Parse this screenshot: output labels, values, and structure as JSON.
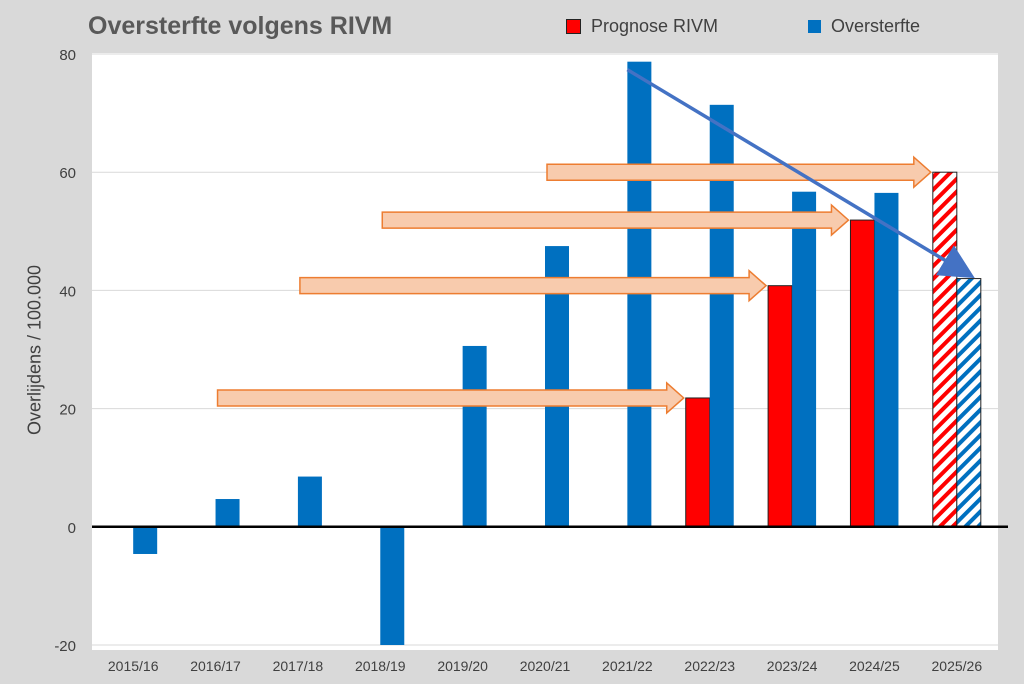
{
  "chart_data": {
    "type": "bar",
    "title": "Oversterfte volgens RIVM",
    "ylabel": "Overlijdens / 100.000",
    "xlabel": "",
    "ylim": [
      -20,
      80
    ],
    "yticks": [
      "80",
      "60",
      "40",
      "20",
      "0",
      "-20"
    ],
    "grid": true,
    "legend_position": "top-right",
    "categories": [
      "2015/16",
      "2016/17",
      "2017/18",
      "2018/19",
      "2019/20",
      "2020/21",
      "2021/22",
      "2022/23",
      "2023/24",
      "2024/25",
      "2025/26"
    ],
    "series": [
      {
        "name": "Prognose RIVM",
        "color": "#ff0000",
        "values": [
          null,
          null,
          null,
          null,
          null,
          null,
          null,
          21.8,
          40.8,
          51.9,
          60
        ],
        "hatched_categories": [
          "2025/26"
        ]
      },
      {
        "name": "Oversterfte",
        "color": "#0070c0",
        "values": [
          -4.6,
          4.7,
          8.5,
          -20,
          30.6,
          47.5,
          78.7,
          71.4,
          56.7,
          56.5,
          42
        ],
        "hatched_categories": [
          "2025/26"
        ]
      }
    ],
    "annotations": [
      {
        "type": "block-arrow",
        "color": "#ed7d31",
        "y": 21.8,
        "from": "2016/17",
        "to": "2022/23"
      },
      {
        "type": "block-arrow",
        "color": "#ed7d31",
        "y": 40.8,
        "from": "2017/18",
        "to": "2023/24"
      },
      {
        "type": "block-arrow",
        "color": "#ed7d31",
        "y": 51.9,
        "from": "2018/19",
        "to": "2024/25"
      },
      {
        "type": "block-arrow",
        "color": "#ed7d31",
        "y": 60,
        "from": "2020/21",
        "to": "2025/26"
      },
      {
        "type": "trend-arrow",
        "color": "#4472c4",
        "from": {
          "x": "2021/22",
          "y": 78.7
        },
        "to": {
          "x": "2025/26",
          "y": 42
        }
      }
    ]
  }
}
